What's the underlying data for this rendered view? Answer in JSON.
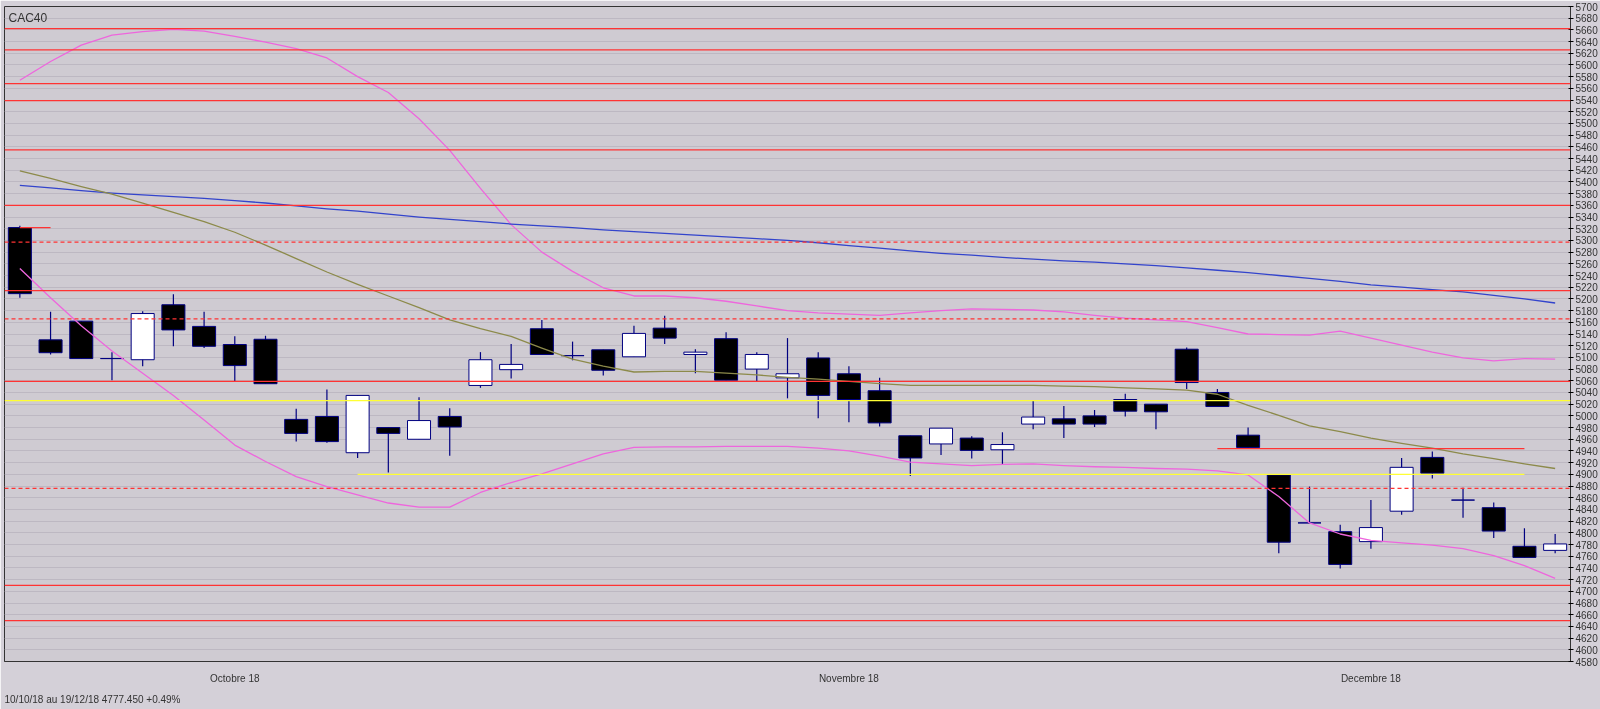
{
  "chart_data": {
    "type": "candlestick",
    "title": "CAC40",
    "annotations": [
      "10/10/18 au 19/12/18  4777.450  +0.49%"
    ],
    "categories": [
      null,
      null,
      null,
      null,
      null,
      null,
      null,
      "Octobre 18",
      null,
      null,
      null,
      null,
      null,
      null,
      null,
      null,
      null,
      null,
      null,
      null,
      null,
      null,
      null,
      null,
      null,
      null,
      null,
      "Novembre 18",
      null,
      null,
      null,
      null,
      null,
      null,
      null,
      null,
      null,
      null,
      null,
      null,
      null,
      null,
      null,
      null,
      "Decembre 18",
      null,
      null,
      null,
      null,
      null,
      null
    ],
    "ohlc": [
      [
        5322,
        5325,
        5202,
        5209
      ],
      [
        5130,
        5178,
        5105,
        5108
      ],
      [
        5162,
        5162,
        5098,
        5098
      ],
      [
        5098,
        5109,
        5061,
        5098
      ],
      [
        5096,
        5179,
        5085,
        5175
      ],
      [
        5190,
        5208,
        5119,
        5147
      ],
      [
        5153,
        5178,
        5116,
        5119
      ],
      [
        5122,
        5136,
        5059,
        5086
      ],
      [
        5131,
        5137,
        5055,
        5055
      ],
      [
        4994,
        5012,
        4956,
        4970
      ],
      [
        4999,
        5045,
        4954,
        4956
      ],
      [
        4937,
        5035,
        4928,
        5035
      ],
      [
        4980,
        4980,
        4903,
        4970
      ],
      [
        4960,
        5032,
        4960,
        4992
      ],
      [
        4999,
        5013,
        4932,
        4981
      ],
      [
        5052,
        5109,
        5048,
        5096
      ],
      [
        5079,
        5123,
        5064,
        5088
      ],
      [
        5149,
        5164,
        5105,
        5105
      ],
      [
        5103,
        5127,
        5095,
        5103
      ],
      [
        5113,
        5113,
        5069,
        5078
      ],
      [
        5101,
        5154,
        5101,
        5141
      ],
      [
        5150,
        5171,
        5123,
        5133
      ],
      [
        5105,
        5114,
        5073,
        5109
      ],
      [
        5132,
        5143,
        5061,
        5061
      ],
      [
        5080,
        5109,
        5058,
        5105
      ],
      [
        5065,
        5133,
        5030,
        5072
      ],
      [
        5099,
        5109,
        4996,
        5035
      ],
      [
        5072,
        5085,
        4989,
        5028
      ],
      [
        5043,
        5065,
        4982,
        4988
      ],
      [
        4966,
        4966,
        4897,
        4928
      ],
      [
        4952,
        4979,
        4933,
        4979
      ],
      [
        4962,
        4965,
        4927,
        4941
      ],
      [
        4942,
        4972,
        4916,
        4951
      ],
      [
        4986,
        5027,
        4977,
        4998
      ],
      [
        4995,
        5017,
        4962,
        4986
      ],
      [
        5000,
        5010,
        4981,
        4986
      ],
      [
        5028,
        5038,
        4999,
        5008
      ],
      [
        5020,
        5020,
        4977,
        5007
      ],
      [
        5114,
        5117,
        5046,
        5057
      ],
      [
        5040,
        5046,
        5016,
        5016
      ],
      [
        4967,
        4980,
        4945,
        4946
      ],
      [
        4899,
        4899,
        4765,
        4784
      ],
      [
        4817,
        4879,
        4817,
        4817
      ],
      [
        4802,
        4814,
        4739,
        4746
      ],
      [
        4785,
        4856,
        4773,
        4809
      ],
      [
        4837,
        4928,
        4831,
        4912
      ],
      [
        4929,
        4939,
        4893,
        4902
      ],
      [
        4856,
        4877,
        4826,
        4856
      ],
      [
        4843,
        4852,
        4791,
        4803
      ],
      [
        4777,
        4808,
        4758,
        4758
      ],
      [
        4770,
        4798,
        4765,
        4781
      ]
    ],
    "series": [
      {
        "type": "line",
        "color": "#ee66dd",
        "values": [
          5574,
          5606,
          5634,
          5651,
          5657,
          5661,
          5658,
          5649,
          5639,
          5628,
          5612,
          5580,
          5553,
          5508,
          5454,
          5389,
          5327,
          5280,
          5247,
          5219,
          5205,
          5205,
          5202,
          5196,
          5188,
          5180,
          5176,
          5174,
          5172,
          5176,
          5180,
          5183,
          5182,
          5181,
          5178,
          5172,
          5167,
          5164,
          5161,
          5151,
          5140,
          5139,
          5138,
          5145,
          5133,
          5121,
          5109,
          5099,
          5094,
          5098,
          5097
        ]
      },
      {
        "type": "line",
        "color": "#ee66dd",
        "values": [
          5252,
          5202,
          5154,
          5111,
          5073,
          5035,
          4993,
          4950,
          4922,
          4896,
          4879,
          4865,
          4851,
          4844,
          4844,
          4869,
          4886,
          4901,
          4918,
          4935,
          4946,
          4947,
          4947,
          4948,
          4948,
          4948,
          4945,
          4940,
          4931,
          4921,
          4918,
          4915,
          4917,
          4918,
          4915,
          4913,
          4912,
          4910,
          4909,
          4906,
          4899,
          4862,
          4817,
          4798,
          4787,
          4783,
          4779,
          4773,
          4761,
          4744,
          4722
        ]
      },
      {
        "type": "line",
        "color": "#3344cc",
        "values": [
          5394,
          5390,
          5385,
          5381,
          5378,
          5375,
          5372,
          5368,
          5364,
          5359,
          5354,
          5350,
          5345,
          5340,
          5336,
          5332,
          5328,
          5325,
          5322,
          5318,
          5315,
          5312,
          5309,
          5306,
          5303,
          5300,
          5296,
          5291,
          5287,
          5282,
          5278,
          5275,
          5271,
          5268,
          5265,
          5263,
          5260,
          5257,
          5253,
          5249,
          5245,
          5240,
          5235,
          5230,
          5224,
          5220,
          5216,
          5212,
          5206,
          5200,
          5193
        ]
      },
      {
        "type": "line",
        "color": "#8c8a4a",
        "values": [
          5419,
          5406,
          5392,
          5379,
          5364,
          5348,
          5332,
          5314,
          5292,
          5269,
          5246,
          5225,
          5205,
          5185,
          5164,
          5149,
          5136,
          5116,
          5097,
          5085,
          5075,
          5076,
          5076,
          5073,
          5070,
          5066,
          5063,
          5059,
          5055,
          5052,
          5052,
          5052,
          5052,
          5052,
          5051,
          5050,
          5048,
          5046,
          5044,
          5037,
          5018,
          5001,
          4983,
          4973,
          4962,
          4953,
          4945,
          4935,
          4927,
          4918,
          4910
        ]
      },
      {
        "type": "line",
        "color": "#ff3333",
        "values": [
          5322,
          5322,
          null,
          null,
          null,
          null,
          null,
          null,
          null,
          null,
          null,
          null,
          null,
          null,
          null,
          null,
          null,
          null,
          null,
          null,
          null,
          null,
          null,
          null,
          null,
          null,
          null,
          null,
          null,
          null,
          null,
          null,
          null,
          null,
          null,
          null,
          null,
          null,
          null,
          null,
          null,
          null,
          null,
          null,
          null,
          null,
          null,
          null,
          null,
          null,
          null
        ]
      },
      {
        "type": "line",
        "color": "#ffff33",
        "values": [
          null,
          null,
          null,
          null,
          null,
          null,
          null,
          null,
          null,
          null,
          null,
          4900,
          4900,
          4900,
          4900,
          4900,
          4900,
          4900,
          4900,
          4900,
          4900,
          4900,
          4900,
          4900,
          4900,
          4900,
          4900,
          4900,
          4900,
          4900,
          4900,
          4900,
          4900,
          4900,
          4900,
          4900,
          4900,
          4900,
          4900,
          4900,
          4900,
          4900,
          4900,
          4900,
          4900,
          4900,
          4900,
          4900,
          4900,
          4900,
          null
        ]
      },
      {
        "type": "line",
        "color": "#ff3333",
        "values": [
          null,
          null,
          null,
          null,
          null,
          null,
          null,
          null,
          null,
          null,
          null,
          null,
          null,
          null,
          null,
          null,
          null,
          null,
          null,
          null,
          null,
          null,
          null,
          null,
          null,
          null,
          null,
          null,
          null,
          null,
          null,
          null,
          null,
          null,
          null,
          null,
          null,
          null,
          null,
          4944,
          4944,
          4944,
          4944,
          4944,
          4944,
          4944,
          4944,
          4944,
          4944,
          4944,
          null
        ]
      }
    ],
    "ref_lines": [
      {
        "axis": "y",
        "value": 5662,
        "color": "#ff3333",
        "line_style": "solid"
      },
      {
        "axis": "y",
        "value": 5626,
        "color": "#ff3333",
        "line_style": "solid"
      },
      {
        "axis": "y",
        "value": 5568,
        "color": "#ff3333",
        "line_style": "solid"
      },
      {
        "axis": "y",
        "value": 5539,
        "color": "#ff3333",
        "line_style": "solid"
      },
      {
        "axis": "y",
        "value": 5455,
        "color": "#ff3333",
        "line_style": "solid"
      },
      {
        "axis": "y",
        "value": 5360,
        "color": "#ff3333",
        "line_style": "solid"
      },
      {
        "axis": "y",
        "value": 5297,
        "color": "#ff3333",
        "line_style": "dashed"
      },
      {
        "axis": "y",
        "value": 5214,
        "color": "#ff3333",
        "line_style": "solid"
      },
      {
        "axis": "y",
        "value": 5166,
        "color": "#ff3333",
        "line_style": "dashed"
      },
      {
        "axis": "y",
        "value": 5059,
        "color": "#ff3333",
        "line_style": "solid"
      },
      {
        "axis": "y",
        "value": 5026,
        "color": "#ffff33",
        "line_style": "solid"
      },
      {
        "axis": "y",
        "value": 4876,
        "color": "#ff3333",
        "line_style": "dashed"
      },
      {
        "axis": "y",
        "value": 4710,
        "color": "#ff3333",
        "line_style": "solid"
      },
      {
        "axis": "y",
        "value": 4650,
        "color": "#ff3333",
        "line_style": "solid"
      }
    ],
    "ylim": [
      4580,
      5700
    ],
    "yticks": [
      4580,
      4600,
      4620,
      4640,
      4660,
      4680,
      4700,
      4720,
      4740,
      4760,
      4780,
      4800,
      4820,
      4840,
      4860,
      4880,
      4900,
      4920,
      4940,
      4960,
      4980,
      5000,
      5020,
      5040,
      5060,
      5080,
      5100,
      5120,
      5140,
      5160,
      5180,
      5200,
      5220,
      5240,
      5260,
      5280,
      5300,
      5320,
      5340,
      5360,
      5380,
      5400,
      5420,
      5440,
      5460,
      5480,
      5500,
      5520,
      5540,
      5560,
      5580,
      5600,
      5620,
      5640,
      5660,
      5680,
      5700
    ],
    "grid": "y"
  }
}
